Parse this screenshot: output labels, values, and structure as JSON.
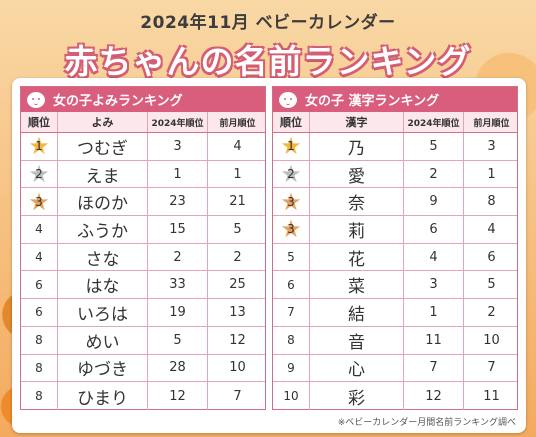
{
  "header": {
    "subtitle": "2024年11月 ベビーカレンダー",
    "title": "赤ちゃんの名前ランキング"
  },
  "left_panel": {
    "title": "女の子よみランキング",
    "columns": [
      "順位",
      "よみ",
      "2024年順位",
      "前月順位"
    ],
    "rows": [
      {
        "rank": "1",
        "name": "つむぎ",
        "year_rank": "3",
        "prev_rank": "4",
        "medal": "gold"
      },
      {
        "rank": "2",
        "name": "えま",
        "year_rank": "1",
        "prev_rank": "1",
        "medal": "silver"
      },
      {
        "rank": "3",
        "name": "ほのか",
        "year_rank": "23",
        "prev_rank": "21",
        "medal": "bronze"
      },
      {
        "rank": "4",
        "name": "ふうか",
        "year_rank": "15",
        "prev_rank": "5",
        "medal": ""
      },
      {
        "rank": "4",
        "name": "さな",
        "year_rank": "2",
        "prev_rank": "2",
        "medal": ""
      },
      {
        "rank": "6",
        "name": "はな",
        "year_rank": "33",
        "prev_rank": "25",
        "medal": ""
      },
      {
        "rank": "6",
        "name": "いろは",
        "year_rank": "19",
        "prev_rank": "13",
        "medal": ""
      },
      {
        "rank": "8",
        "name": "めい",
        "year_rank": "5",
        "prev_rank": "12",
        "medal": ""
      },
      {
        "rank": "8",
        "name": "ゆづき",
        "year_rank": "28",
        "prev_rank": "10",
        "medal": ""
      },
      {
        "rank": "8",
        "name": "ひまり",
        "year_rank": "12",
        "prev_rank": "7",
        "medal": ""
      }
    ]
  },
  "right_panel": {
    "title": "女の子 漢字ランキング",
    "columns": [
      "順位",
      "漢字",
      "2024年順位",
      "前月順位"
    ],
    "rows": [
      {
        "rank": "1",
        "name": "乃",
        "year_rank": "5",
        "prev_rank": "3",
        "medal": "gold"
      },
      {
        "rank": "2",
        "name": "愛",
        "year_rank": "2",
        "prev_rank": "1",
        "medal": "silver"
      },
      {
        "rank": "3",
        "name": "奈",
        "year_rank": "9",
        "prev_rank": "8",
        "medal": "bronze"
      },
      {
        "rank": "3",
        "name": "莉",
        "year_rank": "6",
        "prev_rank": "4",
        "medal": "bronze"
      },
      {
        "rank": "5",
        "name": "花",
        "year_rank": "4",
        "prev_rank": "6",
        "medal": ""
      },
      {
        "rank": "6",
        "name": "菜",
        "year_rank": "3",
        "prev_rank": "5",
        "medal": ""
      },
      {
        "rank": "7",
        "name": "結",
        "year_rank": "1",
        "prev_rank": "2",
        "medal": ""
      },
      {
        "rank": "8",
        "name": "音",
        "year_rank": "11",
        "prev_rank": "10",
        "medal": ""
      },
      {
        "rank": "9",
        "name": "心",
        "year_rank": "7",
        "prev_rank": "7",
        "medal": ""
      },
      {
        "rank": "10",
        "name": "彩",
        "year_rank": "12",
        "prev_rank": "11",
        "medal": ""
      }
    ]
  },
  "footnote": "※ベビーカレンダー月間名前ランキング調べ",
  "colors": {
    "accent": "#d95e7e",
    "header_bg": "#fbe7ec",
    "gold": "#f4b63a",
    "silver": "#bdbdbd",
    "bronze": "#e9a25d"
  },
  "icons": {
    "panel_icon": "baby-face-icon",
    "medal_icon": "star-icon"
  }
}
